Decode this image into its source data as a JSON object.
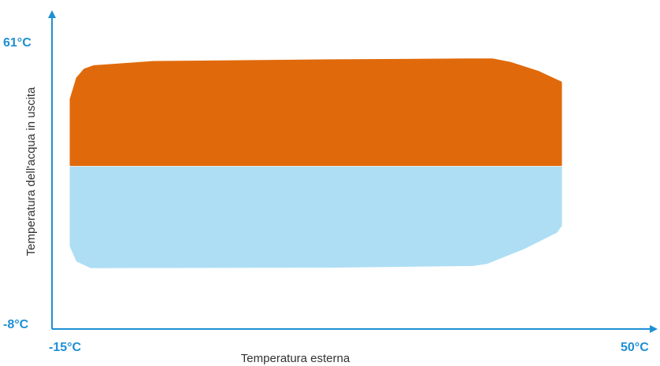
{
  "chart_data": {
    "type": "area",
    "title": "",
    "xlabel": "Temperatura esterna",
    "ylabel": "Temperatura dell'acqua in uscita",
    "xlim": [
      -15,
      50
    ],
    "ylim": [
      -8,
      61
    ],
    "x_tick_labels": [
      "-15°C",
      "50°C"
    ],
    "y_tick_labels": [
      "61°C",
      "-8°C"
    ],
    "grid": false,
    "legend": "none",
    "series": [
      {
        "color": "#E06A0B",
        "points": [
          [
            -13.0,
            46
          ],
          [
            -12.3,
            51
          ],
          [
            -11.5,
            53
          ],
          [
            -10.5,
            53.8
          ],
          [
            -4.0,
            54.8
          ],
          [
            15.0,
            55.2
          ],
          [
            30.0,
            55.4
          ],
          [
            32.6,
            55.4
          ],
          [
            34.5,
            54.6
          ],
          [
            37.5,
            52.5
          ],
          [
            40.0,
            50
          ],
          [
            40.0,
            30.5
          ],
          [
            -13.0,
            30.5
          ]
        ]
      },
      {
        "color": "#AEDEF4",
        "points": [
          [
            -13.0,
            30.0
          ],
          [
            40.0,
            30.0
          ],
          [
            40.0,
            16.3
          ],
          [
            39.5,
            14.8
          ],
          [
            36.0,
            11
          ],
          [
            32.0,
            7.5
          ],
          [
            30.5,
            7
          ],
          [
            15.0,
            6.6
          ],
          [
            -10.8,
            6.5
          ],
          [
            -12.3,
            8
          ],
          [
            -13.0,
            11.5
          ],
          [
            -13.0,
            16
          ]
        ]
      }
    ]
  }
}
